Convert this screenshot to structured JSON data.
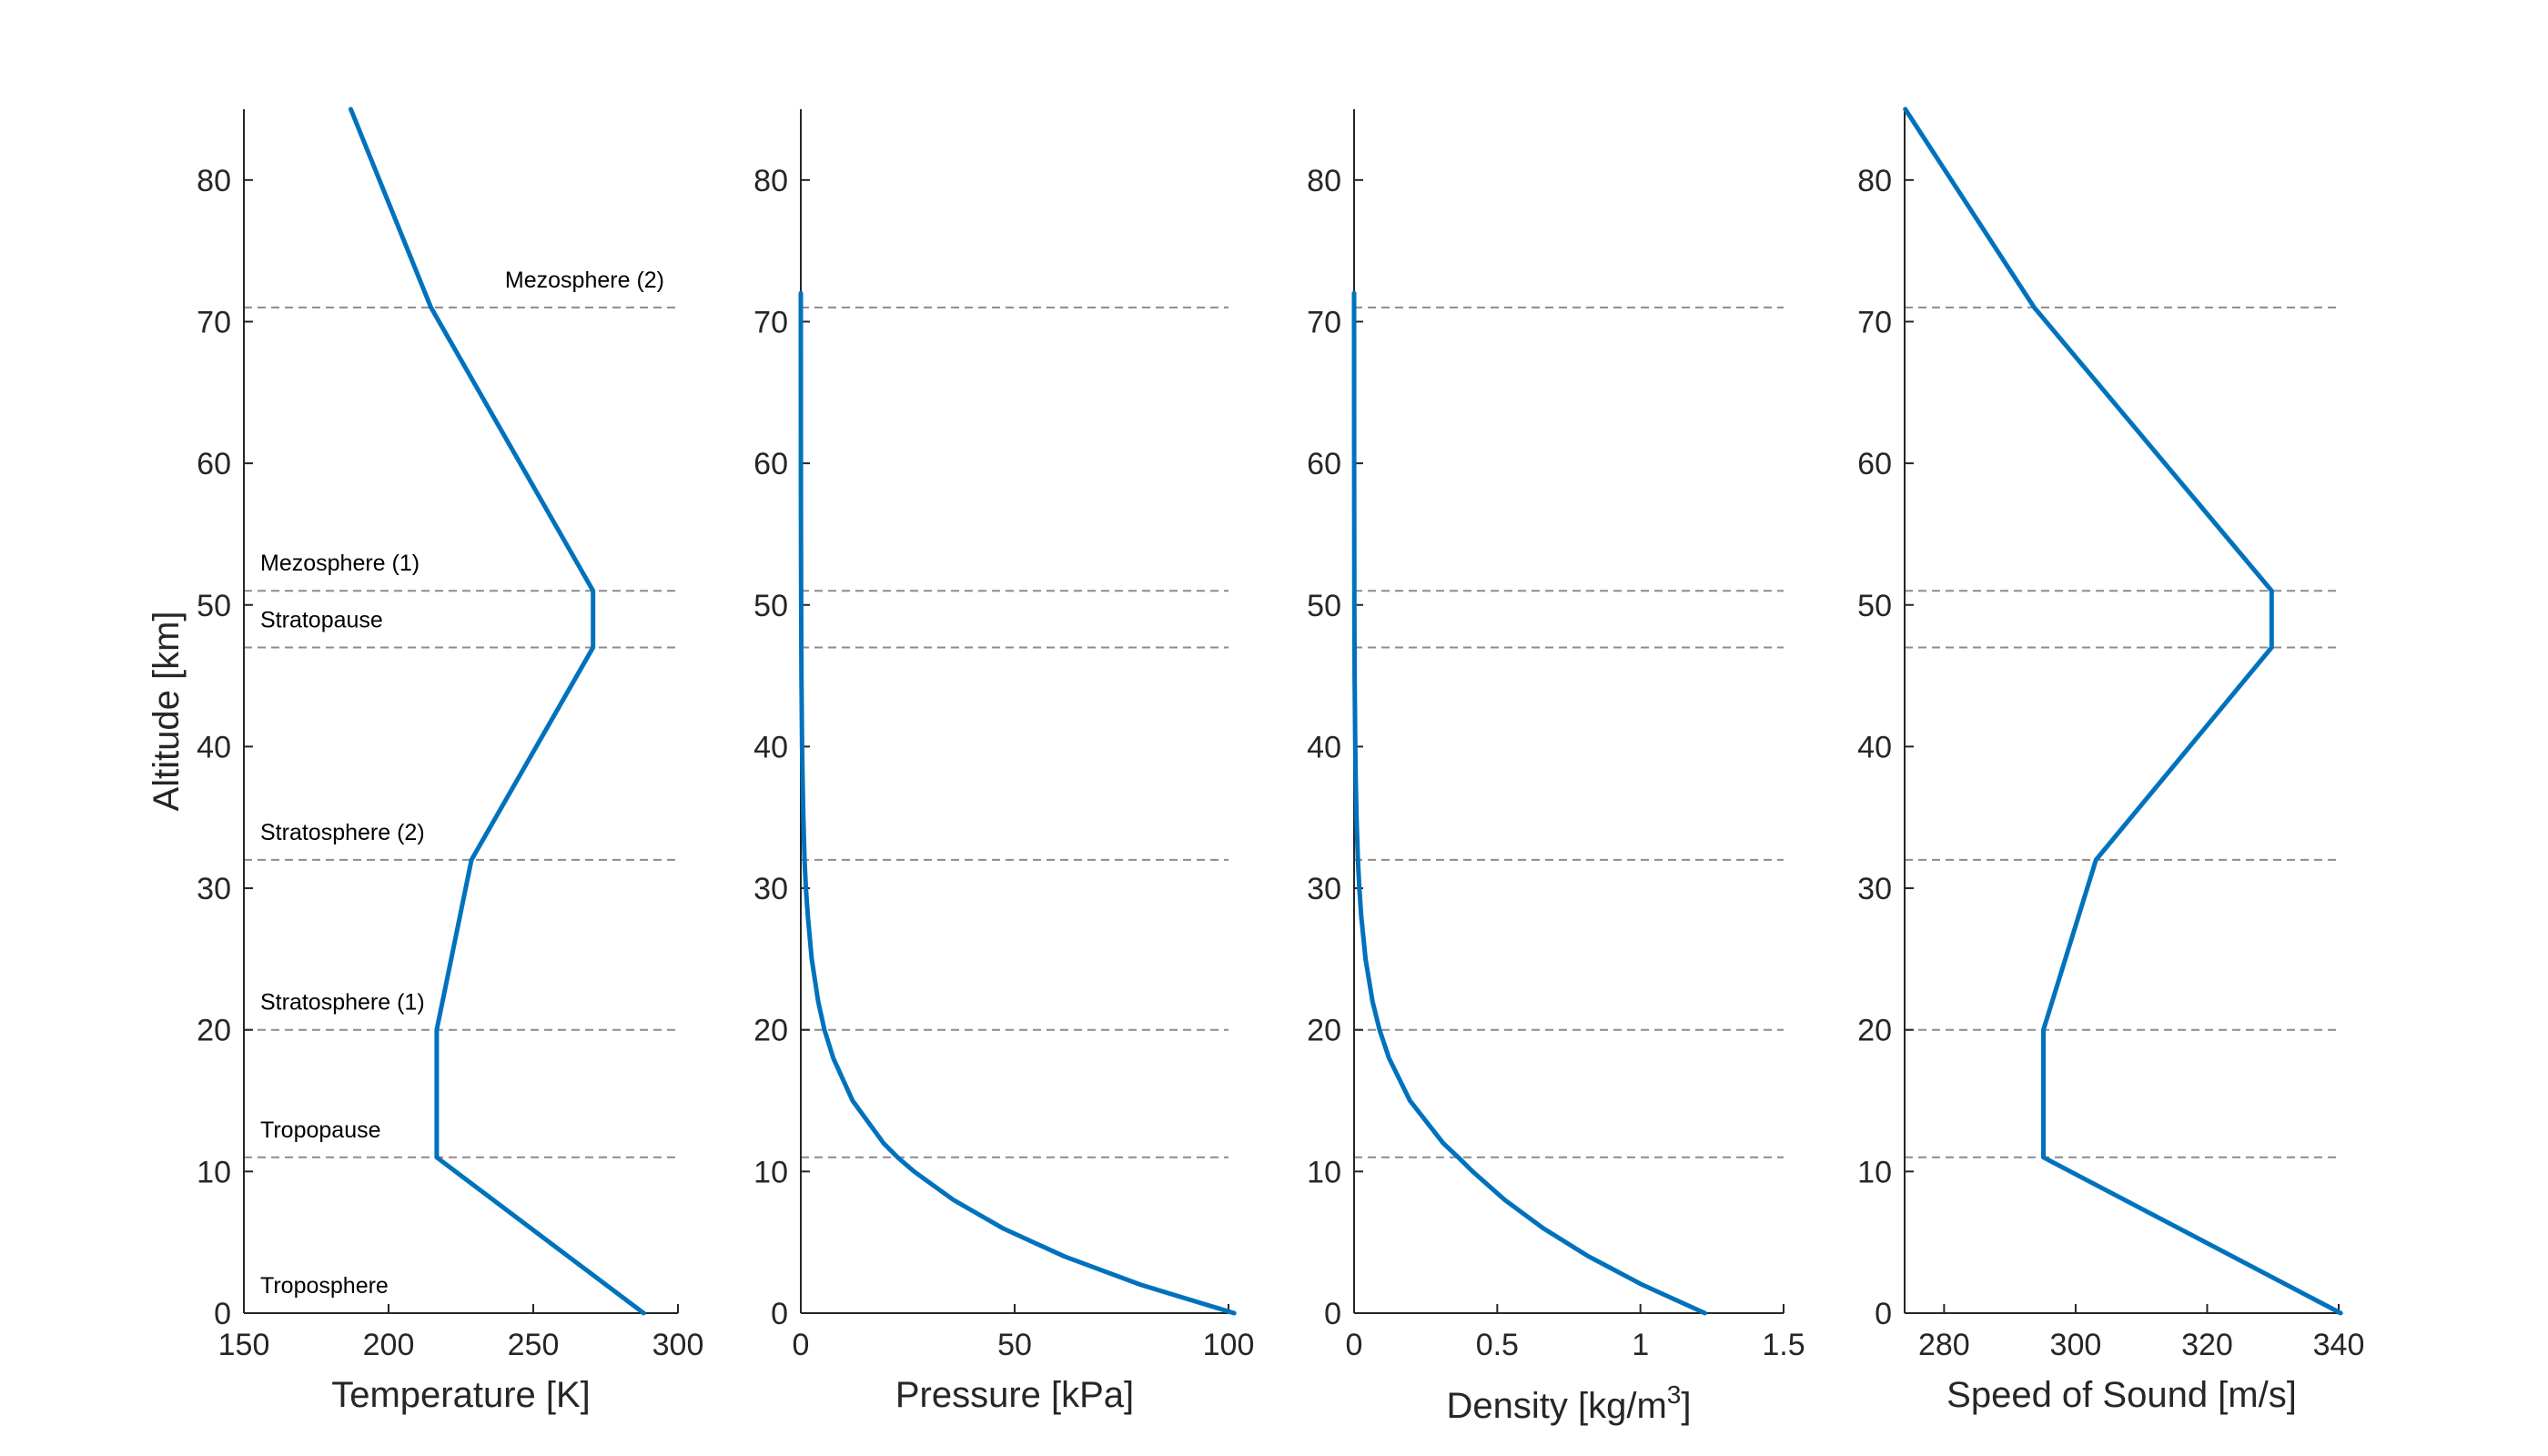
{
  "chart_data": [
    {
      "type": "line",
      "title": "",
      "xlabel": "Temperature [K]",
      "ylabel": "Altitude [km]",
      "xlim": [
        150,
        300
      ],
      "ylim": [
        0,
        85
      ],
      "xticks": [
        150,
        200,
        250,
        300
      ],
      "yticks": [
        0,
        10,
        20,
        30,
        40,
        50,
        60,
        70,
        80
      ],
      "grid": false,
      "color": "#0072BD",
      "series": [
        {
          "x": [
            288.15,
            216.65,
            216.65,
            228.65,
            270.65,
            270.65,
            214.65,
            186.95
          ],
          "y": [
            0,
            11,
            20,
            32,
            47,
            51,
            71,
            85
          ]
        }
      ],
      "boundaries": [
        11,
        20,
        32,
        47,
        51,
        71
      ],
      "layer_labels": [
        {
          "text": "Troposphere",
          "alt": 0
        },
        {
          "text": "Tropopause",
          "alt": 11
        },
        {
          "text": "Stratosphere (1)",
          "alt": 20
        },
        {
          "text": "Stratosphere (2)",
          "alt": 32
        },
        {
          "text": "Stratopause",
          "alt": 47
        },
        {
          "text": "Mezosphere (1)",
          "alt": 51
        },
        {
          "text": "Mezosphere (2)",
          "alt": 71
        }
      ]
    },
    {
      "type": "line",
      "title": "",
      "xlabel": "Pressure [kPa]",
      "ylabel": "",
      "xlim": [
        0,
        100
      ],
      "ylim": [
        0,
        85
      ],
      "xticks": [
        0,
        50,
        100
      ],
      "yticks": [
        0,
        10,
        20,
        30,
        40,
        50,
        60,
        70,
        80
      ],
      "grid": false,
      "color": "#0072BD",
      "series": [
        {
          "x": [
            101.325,
            79.5,
            61.64,
            47.18,
            35.65,
            26.5,
            22.63,
            19.33,
            12.11,
            7.6,
            5.53,
            4.06,
            2.55,
            1.67,
            1.2,
            0.868,
            0.599,
            0.402,
            0.292,
            0.152,
            0.076,
            0.0395,
            0.0171,
            0.0058,
            0.0037
          ],
          "y": [
            0,
            2,
            4,
            6,
            8,
            10,
            11,
            12,
            15,
            18,
            20,
            22,
            25,
            28,
            30,
            32,
            35,
            38,
            40,
            45,
            50,
            55,
            60,
            70,
            72
          ]
        }
      ],
      "boundaries": [
        11,
        20,
        32,
        47,
        51,
        71
      ]
    },
    {
      "type": "line",
      "title": "",
      "xlabel": "Density [kg/m",
      "xlabel_sup": "3",
      "xlabel_end": "]",
      "ylabel": "",
      "xlim": [
        0,
        1.5
      ],
      "ylim": [
        0,
        85
      ],
      "xticks": [
        0,
        0.5,
        1,
        1.5
      ],
      "yticks": [
        0,
        10,
        20,
        30,
        40,
        50,
        60,
        70,
        80
      ],
      "grid": false,
      "color": "#0072BD",
      "series": [
        {
          "x": [
            1.225,
            1.007,
            0.819,
            0.66,
            0.526,
            0.414,
            0.364,
            0.311,
            0.195,
            0.122,
            0.0889,
            0.0645,
            0.0401,
            0.0251,
            0.0184,
            0.0132,
            0.00846,
            0.00544,
            0.004,
            0.00198,
            0.00103,
            0.00055,
            0.00031,
            8e-05,
            3e-05
          ],
          "y": [
            0,
            2,
            4,
            6,
            8,
            10,
            11,
            12,
            15,
            18,
            20,
            22,
            25,
            28,
            30,
            32,
            35,
            38,
            40,
            45,
            50,
            55,
            60,
            70,
            72
          ]
        }
      ],
      "boundaries": [
        11,
        20,
        32,
        47,
        51,
        71
      ]
    },
    {
      "type": "line",
      "title": "",
      "xlabel": "Speed of Sound [m/s]",
      "ylabel": "",
      "xlim": [
        274,
        340
      ],
      "ylim": [
        0,
        85
      ],
      "xticks": [
        280,
        300,
        320,
        340
      ],
      "yticks": [
        0,
        10,
        20,
        30,
        40,
        50,
        60,
        70,
        80
      ],
      "grid": false,
      "color": "#0072BD",
      "series": [
        {
          "x": [
            340.3,
            295.1,
            295.1,
            303.1,
            329.8,
            329.8,
            293.7,
            274.1
          ],
          "y": [
            0,
            11,
            20,
            32,
            47,
            51,
            71,
            85
          ]
        }
      ],
      "boundaries": [
        11,
        20,
        32,
        47,
        51,
        71
      ]
    }
  ]
}
